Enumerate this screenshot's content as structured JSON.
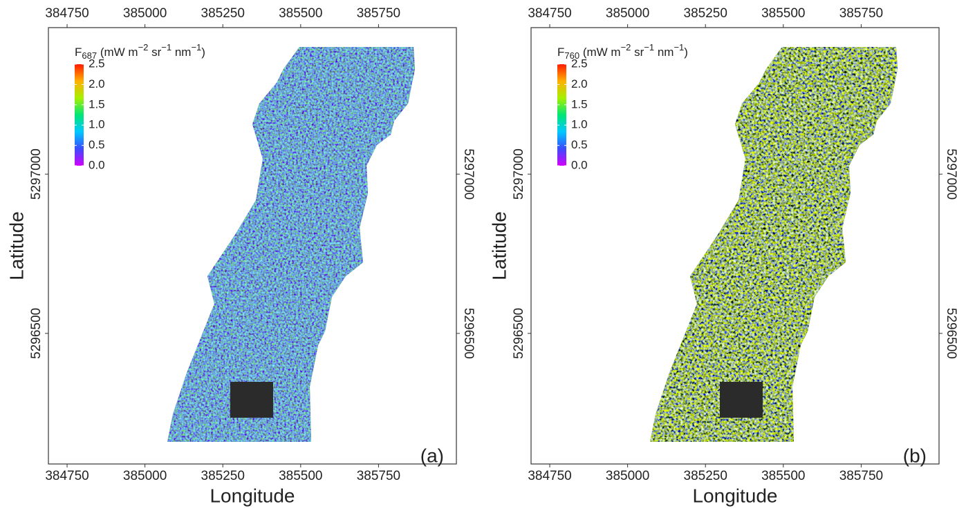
{
  "chart_data": [
    {
      "type": "raster",
      "panel_label": "(a)",
      "xlabel": "Longitude",
      "ylabel": "Latitude",
      "xlim": [
        384690,
        386000
      ],
      "xticks": [
        384750,
        385000,
        385250,
        385500,
        385750
      ],
      "ylim": [
        5296090,
        5297460
      ],
      "yticks": [
        5296500,
        5297000
      ],
      "colorbar": {
        "title": [
          {
            "text": "F"
          },
          {
            "text": "687",
            "style": "sub"
          },
          {
            "text": " (mW m"
          },
          {
            "text": "−2",
            "style": "sup"
          },
          {
            "text": " sr"
          },
          {
            "text": "−1",
            "style": "sup"
          },
          {
            "text": " nm"
          },
          {
            "text": "−1",
            "style": "sup"
          },
          {
            "text": ")"
          }
        ],
        "lim": [
          0,
          2.5
        ],
        "ticks": [
          {
            "value": 0,
            "label": "0.0"
          },
          0.5,
          {
            "value": 1,
            "label": "1.0"
          },
          1.5,
          {
            "value": 2,
            "label": "2.0"
          },
          2.5
        ],
        "colors": [
          "#d400ff",
          "#3b4bff",
          "#00c8ff",
          "#00e676",
          "#a6f000",
          "#ffb000",
          "#ff1a00"
        ]
      }
    },
    {
      "type": "raster",
      "panel_label": "(b)",
      "xlabel": "Longitude",
      "ylabel": "Latitude",
      "xlim": [
        384690,
        386000
      ],
      "xticks": [
        384750,
        385000,
        385250,
        385500,
        385750
      ],
      "ylim": [
        5296090,
        5297460
      ],
      "yticks": [
        5296500,
        5297000
      ],
      "colorbar": {
        "title": [
          {
            "text": "F"
          },
          {
            "text": "760",
            "style": "sub"
          },
          {
            "text": " (mW m"
          },
          {
            "text": "−2",
            "style": "sup"
          },
          {
            "text": " sr"
          },
          {
            "text": "−1",
            "style": "sup"
          },
          {
            "text": " nm"
          },
          {
            "text": "−1",
            "style": "sup"
          },
          {
            "text": ")"
          }
        ],
        "lim": [
          0,
          2.5
        ],
        "ticks": [
          {
            "value": 0,
            "label": "0.0"
          },
          0.5,
          {
            "value": 1,
            "label": "1.0"
          },
          1.5,
          {
            "value": 2,
            "label": "2.0"
          },
          2.5
        ],
        "colors": [
          "#d400ff",
          "#3b4bff",
          "#00c8ff",
          "#00e676",
          "#a6f000",
          "#ffb000",
          "#ff1a00"
        ]
      }
    }
  ]
}
